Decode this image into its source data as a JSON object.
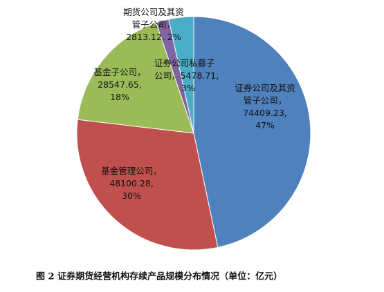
{
  "chart_data": {
    "type": "pie",
    "title": "图 2   证券期货经营机构存续产品规模分布情况（单位：亿元）",
    "categories": [
      "证券公司及其资管子公司，",
      "基金管理公司，",
      "基金子公司，",
      "期货公司及其资管子公司，",
      "证券公司私募子公司，"
    ],
    "values": [
      74409.23,
      48100.28,
      28547.65,
      2813.12,
      5478.71
    ],
    "value_labels": [
      "74409.23,",
      "48100.28,",
      "28547.65,",
      "2813.12,",
      "5478.71,"
    ],
    "shares": [
      47,
      30,
      18,
      2,
      3
    ],
    "share_labels": [
      "47%",
      "30%",
      "18%",
      "2%",
      "3%"
    ],
    "colors": [
      "#4f81bd",
      "#c0504d",
      "#9bbb59",
      "#8064a2",
      "#4bacc6"
    ]
  }
}
